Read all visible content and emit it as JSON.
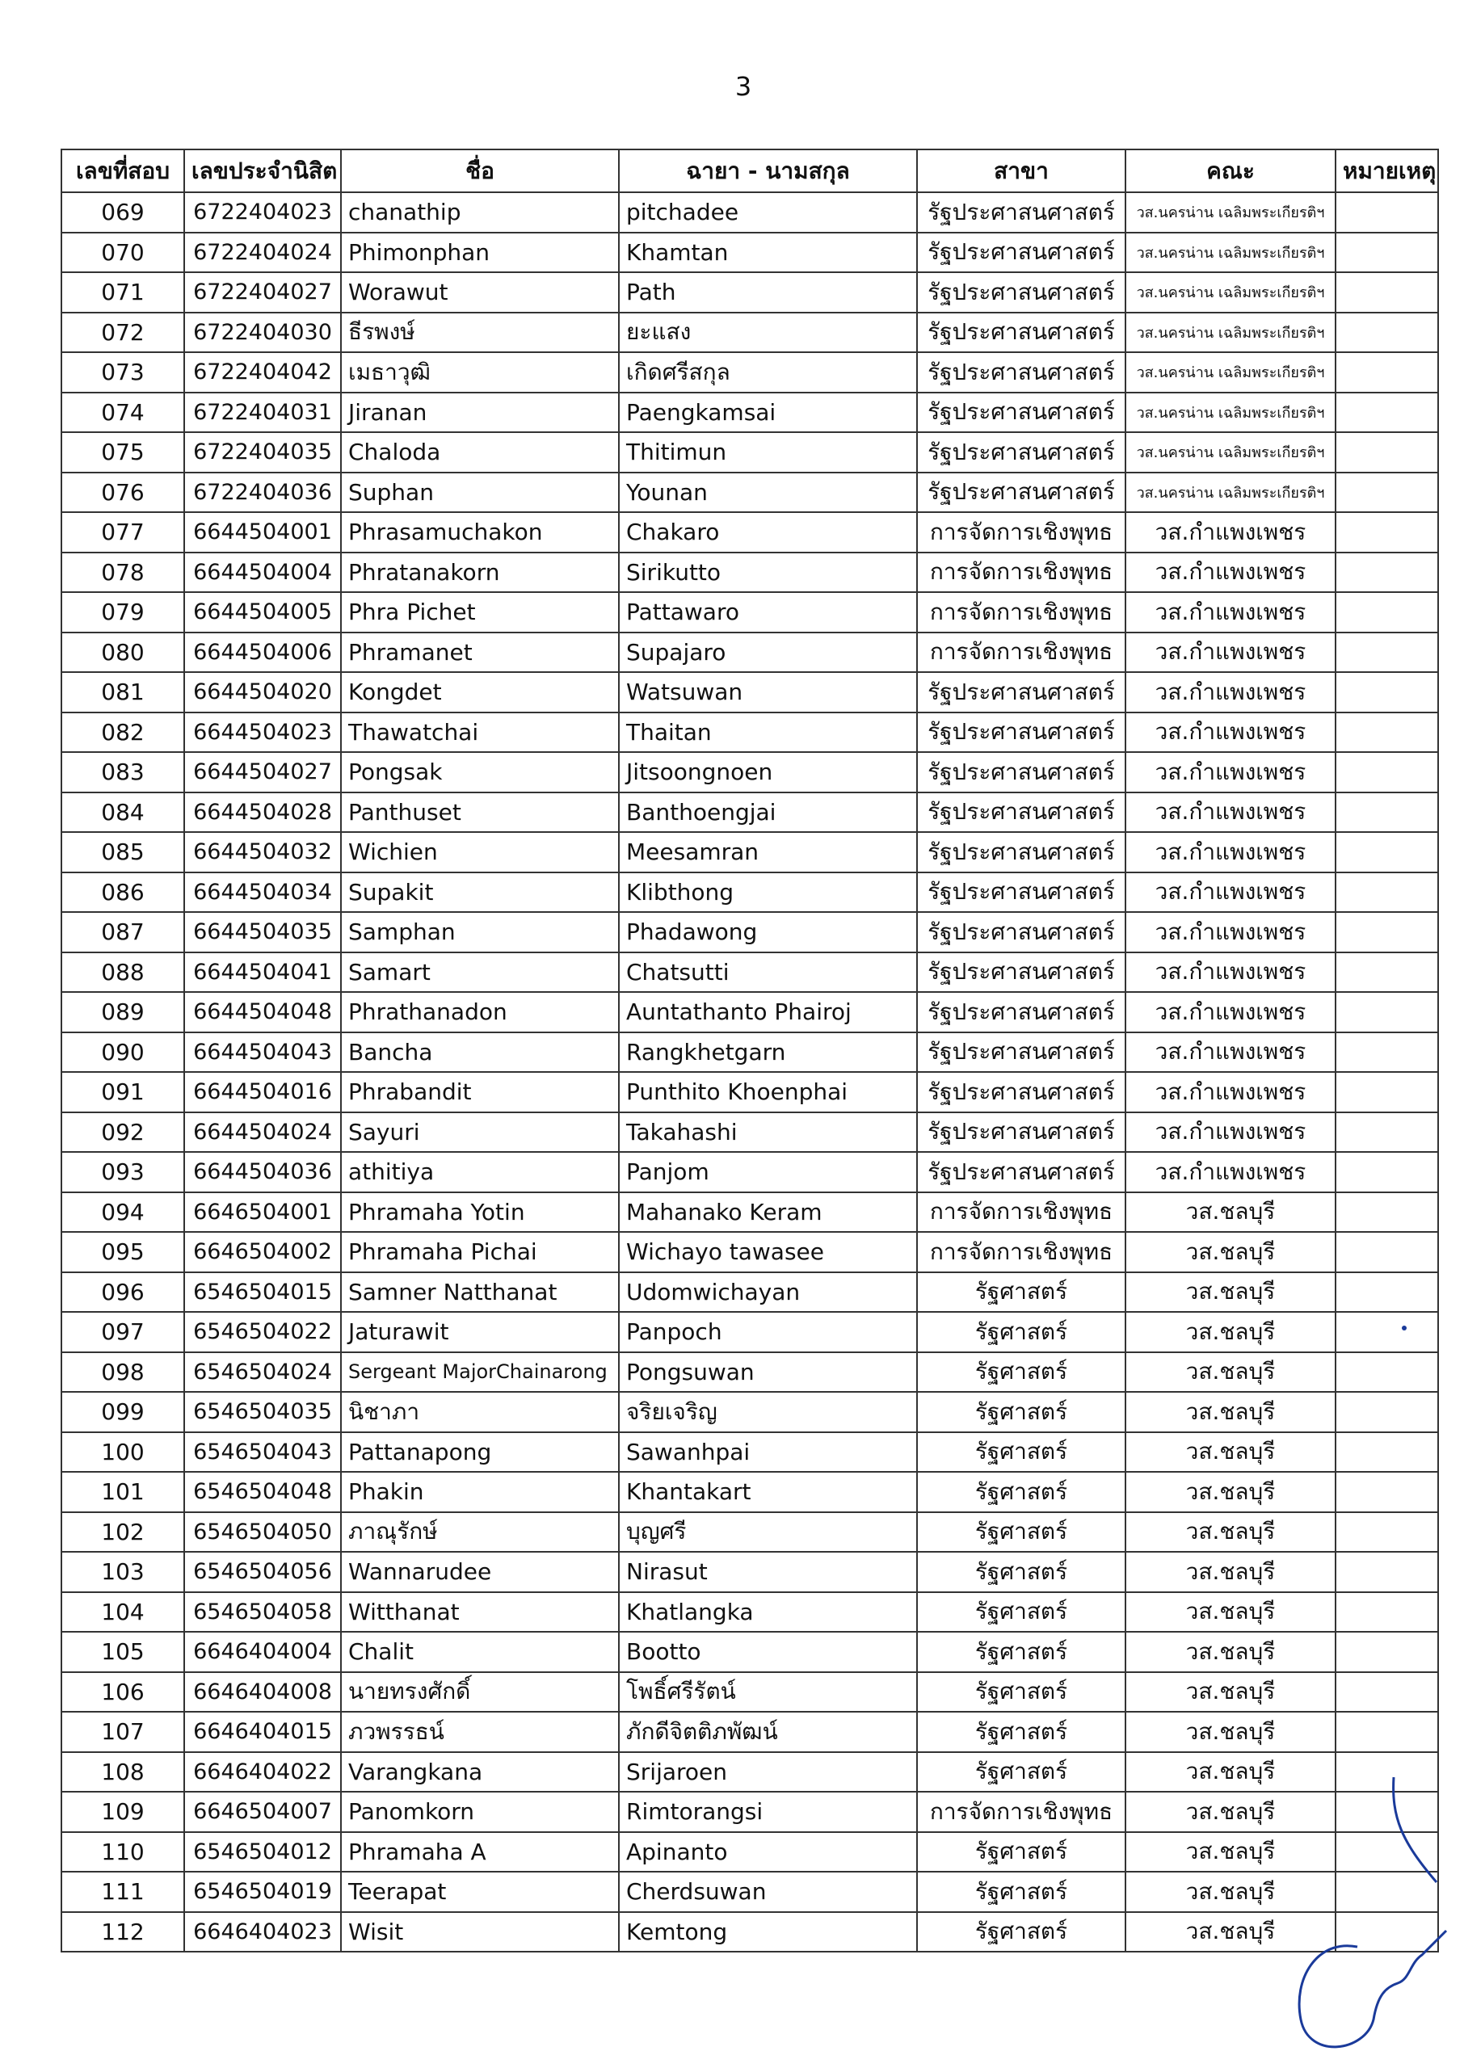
{
  "page_number": "3",
  "table": {
    "headers": [
      "เลขที่สอบ",
      "เลขประจำนิสิต",
      "ชื่อ",
      "ฉายา - นามสกุล",
      "สาขา",
      "คณะ",
      "หมายเหตุ"
    ],
    "rows": [
      [
        "069",
        "6722404023",
        "chanathip",
        "pitchadee",
        "รัฐประศาสนศาสตร์",
        "วส.นครน่าน เฉลิมพระเกียรติฯ"
      ],
      [
        "070",
        "6722404024",
        "Phimonphan",
        "Khamtan",
        "รัฐประศาสนศาสตร์",
        "วส.นครน่าน เฉลิมพระเกียรติฯ"
      ],
      [
        "071",
        "6722404027",
        "Worawut",
        "Path",
        "รัฐประศาสนศาสตร์",
        "วส.นครน่าน เฉลิมพระเกียรติฯ"
      ],
      [
        "072",
        "6722404030",
        "ธีรพงษ์",
        "ยะแสง",
        "รัฐประศาสนศาสตร์",
        "วส.นครน่าน เฉลิมพระเกียรติฯ"
      ],
      [
        "073",
        "6722404042",
        "เมธาวุฒิ",
        "เกิดศรีสกุล",
        "รัฐประศาสนศาสตร์",
        "วส.นครน่าน เฉลิมพระเกียรติฯ"
      ],
      [
        "074",
        "6722404031",
        "Jiranan",
        "Paengkamsai",
        "รัฐประศาสนศาสตร์",
        "วส.นครน่าน เฉลิมพระเกียรติฯ"
      ],
      [
        "075",
        "6722404035",
        "Chaloda",
        "Thitimun",
        "รัฐประศาสนศาสตร์",
        "วส.นครน่าน เฉลิมพระเกียรติฯ"
      ],
      [
        "076",
        "6722404036",
        "Suphan",
        "Younan",
        "รัฐประศาสนศาสตร์",
        "วส.นครน่าน เฉลิมพระเกียรติฯ"
      ],
      [
        "077",
        "6644504001",
        "Phrasamuchakon",
        "Chakaro",
        "การจัดการเชิงพุทธ",
        "วส.กำแพงเพชร"
      ],
      [
        "078",
        "6644504004",
        "Phratanakorn",
        "Sirikutto",
        "การจัดการเชิงพุทธ",
        "วส.กำแพงเพชร"
      ],
      [
        "079",
        "6644504005",
        "Phra Pichet",
        "Pattawaro",
        "การจัดการเชิงพุทธ",
        "วส.กำแพงเพชร"
      ],
      [
        "080",
        "6644504006",
        "Phramanet",
        "Supajaro",
        "การจัดการเชิงพุทธ",
        "วส.กำแพงเพชร"
      ],
      [
        "081",
        "6644504020",
        "Kongdet",
        "Watsuwan",
        "รัฐประศาสนศาสตร์",
        "วส.กำแพงเพชร"
      ],
      [
        "082",
        "6644504023",
        "Thawatchai",
        "Thaitan",
        "รัฐประศาสนศาสตร์",
        "วส.กำแพงเพชร"
      ],
      [
        "083",
        "6644504027",
        "Pongsak",
        "Jitsoongnoen",
        "รัฐประศาสนศาสตร์",
        "วส.กำแพงเพชร"
      ],
      [
        "084",
        "6644504028",
        "Panthuset",
        "Banthoengjai",
        "รัฐประศาสนศาสตร์",
        "วส.กำแพงเพชร"
      ],
      [
        "085",
        "6644504032",
        "Wichien",
        "Meesamran",
        "รัฐประศาสนศาสตร์",
        "วส.กำแพงเพชร"
      ],
      [
        "086",
        "6644504034",
        "Supakit",
        "Klibthong",
        "รัฐประศาสนศาสตร์",
        "วส.กำแพงเพชร"
      ],
      [
        "087",
        "6644504035",
        "Samphan",
        "Phadawong",
        "รัฐประศาสนศาสตร์",
        "วส.กำแพงเพชร"
      ],
      [
        "088",
        "6644504041",
        "Samart",
        "Chatsutti",
        "รัฐประศาสนศาสตร์",
        "วส.กำแพงเพชร"
      ],
      [
        "089",
        "6644504048",
        "Phrathanadon",
        "Auntathanto Phairoj",
        "รัฐประศาสนศาสตร์",
        "วส.กำแพงเพชร"
      ],
      [
        "090",
        "6644504043",
        "Bancha",
        "Rangkhetgarn",
        "รัฐประศาสนศาสตร์",
        "วส.กำแพงเพชร"
      ],
      [
        "091",
        "6644504016",
        "Phrabandit",
        "Punthito Khoenphai",
        "รัฐประศาสนศาสตร์",
        "วส.กำแพงเพชร"
      ],
      [
        "092",
        "6644504024",
        "Sayuri",
        "Takahashi",
        "รัฐประศาสนศาสตร์",
        "วส.กำแพงเพชร"
      ],
      [
        "093",
        "6644504036",
        "athitiya",
        "Panjom",
        "รัฐประศาสนศาสตร์",
        "วส.กำแพงเพชร"
      ],
      [
        "094",
        "6646504001",
        "Phramaha Yotin",
        "Mahanako Keram",
        "การจัดการเชิงพุทธ",
        "วส.ชลบุรี"
      ],
      [
        "095",
        "6646504002",
        "Phramaha Pichai",
        "Wichayo tawasee",
        "การจัดการเชิงพุทธ",
        "วส.ชลบุรี"
      ],
      [
        "096",
        "6546504015",
        "Samner Natthanat",
        "Udomwichayan",
        "รัฐศาสตร์",
        "วส.ชลบุรี"
      ],
      [
        "097",
        "6546504022",
        "Jaturawit",
        "Panpoch",
        "รัฐศาสตร์",
        "วส.ชลบุรี"
      ],
      [
        "098",
        "6546504024",
        "Sergeant MajorChainarong",
        "Pongsuwan",
        "รัฐศาสตร์",
        "วส.ชลบุรี"
      ],
      [
        "099",
        "6546504035",
        "นิชาภา",
        "จริยเจริญ",
        "รัฐศาสตร์",
        "วส.ชลบุรี"
      ],
      [
        "100",
        "6546504043",
        "Pattanapong",
        "Sawanhpai",
        "รัฐศาสตร์",
        "วส.ชลบุรี"
      ],
      [
        "101",
        "6546504048",
        "Phakin",
        "Khantakart",
        "รัฐศาสตร์",
        "วส.ชลบุรี"
      ],
      [
        "102",
        "6546504050",
        "ภาณุรักษ์",
        "บุญศรี",
        "รัฐศาสตร์",
        "วส.ชลบุรี"
      ],
      [
        "103",
        "6546504056",
        "Wannarudee",
        "Nirasut",
        "รัฐศาสตร์",
        "วส.ชลบุรี"
      ],
      [
        "104",
        "6546504058",
        "Witthanat",
        "Khatlangka",
        "รัฐศาสตร์",
        "วส.ชลบุรี"
      ],
      [
        "105",
        "6646404004",
        "Chalit",
        "Bootto",
        "รัฐศาสตร์",
        "วส.ชลบุรี"
      ],
      [
        "106",
        "6646404008",
        "นายทรงศักดิ์",
        "โพธิ์ศรีรัตน์",
        "รัฐศาสตร์",
        "วส.ชลบุรี"
      ],
      [
        "107",
        "6646404015",
        "ภวพรรธน์",
        "ภักดีจิตติภพัฒน์",
        "รัฐศาสตร์",
        "วส.ชลบุรี"
      ],
      [
        "108",
        "6646404022",
        "Varangkana",
        "Srijaroen",
        "รัฐศาสตร์",
        "วส.ชลบุรี"
      ],
      [
        "109",
        "6646504007",
        "Panomkorn",
        "Rimtorangsi",
        "การจัดการเชิงพุทธ",
        "วส.ชลบุรี"
      ],
      [
        "110",
        "6546504012",
        "Phramaha A",
        "Apinanto",
        "รัฐศาสตร์",
        "วส.ชลบุรี"
      ],
      [
        "111",
        "6546504019",
        "Teerapat",
        "Cherdsuwan",
        "รัฐศาสตร์",
        "วส.ชลบุรี"
      ],
      [
        "112",
        "6646404023",
        "Wisit",
        "Kemtong",
        "รัฐศาสตร์",
        "วส.ชลบุรี"
      ]
    ]
  }
}
